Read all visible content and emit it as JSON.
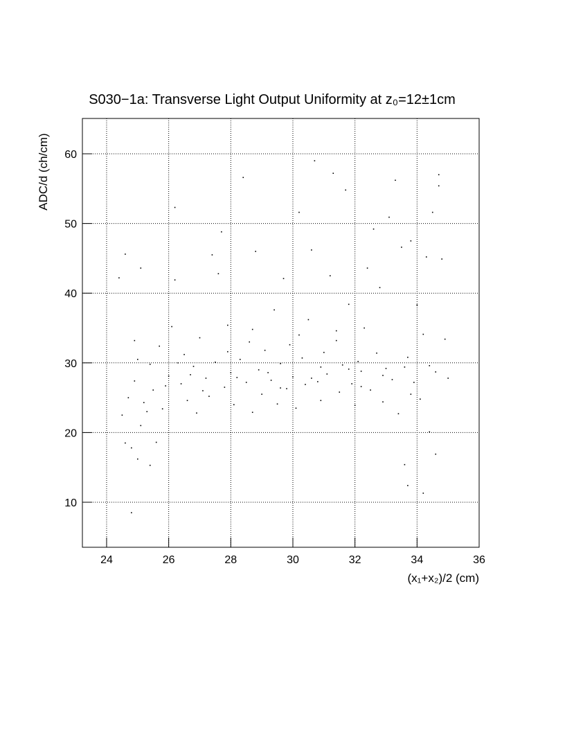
{
  "chart_data": {
    "type": "scatter",
    "title": "S030−1a: Transverse Light Output Uniformity at z₀=12±1cm",
    "x_label": "(x₁+x₂)/2 (cm)",
    "y_label": "ADC/d (ch/cm)",
    "x": [
      24.4,
      24.6,
      25.1,
      24.8,
      24.6,
      24.8,
      25.0,
      25.4,
      25.6,
      24.5,
      24.7,
      24.9,
      25.1,
      25.2,
      25.4,
      25.5,
      25.7,
      25.8,
      26.0,
      26.1,
      26.2,
      26.4,
      26.5,
      26.6,
      26.8,
      26.9,
      27.0,
      27.2,
      27.3,
      27.5,
      27.6,
      27.7,
      27.8,
      27.9,
      28.0,
      28.1,
      28.3,
      28.4,
      28.5,
      28.6,
      28.7,
      28.8,
      28.9,
      29.0,
      29.1,
      29.3,
      29.4,
      29.5,
      29.6,
      29.7,
      29.8,
      29.9,
      30.0,
      30.1,
      30.2,
      30.3,
      30.4,
      30.5,
      30.6,
      30.7,
      30.8,
      30.9,
      31.0,
      31.1,
      31.2,
      31.3,
      31.4,
      31.5,
      31.6,
      31.7,
      31.8,
      31.9,
      32.0,
      32.1,
      32.2,
      32.3,
      32.4,
      32.5,
      32.6,
      32.7,
      32.8,
      32.9,
      33.0,
      33.1,
      33.2,
      33.3,
      33.4,
      33.5,
      33.6,
      33.7,
      33.8,
      33.9,
      34.0,
      34.1,
      34.2,
      34.3,
      34.4,
      34.5,
      34.6,
      34.7,
      34.8,
      34.9,
      35.0,
      34.7,
      34.4,
      33.7,
      26.2,
      27.4,
      25.0,
      25.9,
      26.7,
      27.1,
      28.2,
      29.2,
      30.6,
      31.8,
      32.9,
      33.6,
      34.6,
      26.3,
      27.9,
      29.6,
      30.9,
      32.2,
      33.8,
      24.9,
      25.3,
      28.7,
      30.2,
      31.4,
      34.2
    ],
    "values": [
      42.2,
      45.6,
      43.6,
      8.5,
      18.5,
      17.8,
      16.2,
      15.3,
      18.6,
      22.5,
      25.0,
      27.4,
      21.0,
      24.3,
      29.8,
      26.1,
      32.4,
      23.4,
      28.1,
      35.2,
      41.9,
      27.0,
      31.2,
      24.6,
      29.5,
      22.8,
      33.6,
      27.8,
      25.2,
      30.1,
      42.8,
      48.8,
      26.5,
      35.4,
      28.6,
      24.0,
      30.5,
      56.6,
      27.2,
      33.0,
      22.9,
      46.0,
      29.0,
      25.5,
      31.8,
      27.5,
      37.6,
      24.1,
      29.9,
      42.1,
      26.3,
      32.6,
      28.0,
      23.5,
      51.6,
      30.7,
      26.9,
      36.2,
      46.2,
      59.0,
      27.3,
      24.6,
      31.5,
      28.4,
      42.5,
      57.2,
      33.2,
      25.8,
      29.7,
      54.8,
      38.4,
      27.0,
      23.9,
      30.2,
      28.8,
      35.0,
      43.6,
      26.1,
      49.2,
      31.4,
      40.8,
      24.4,
      29.2,
      50.9,
      27.6,
      56.2,
      22.7,
      46.6,
      15.4,
      30.8,
      47.5,
      27.2,
      38.3,
      24.8,
      11.3,
      45.2,
      29.6,
      51.6,
      16.9,
      57.0,
      44.9,
      33.4,
      27.8,
      55.4,
      20.1,
      12.4,
      52.3,
      45.5,
      30.5,
      26.7,
      28.3,
      26.0,
      27.9,
      28.6,
      27.8,
      29.1,
      28.2,
      29.4,
      28.7,
      30.0,
      31.6,
      26.4,
      29.4,
      26.6,
      25.5,
      33.2,
      23.0,
      34.8,
      34.0,
      34.6,
      34.1
    ],
    "color": "#000000",
    "xlim": [
      23.22,
      36
    ],
    "xticks": [
      24,
      26,
      28,
      30,
      32,
      34,
      36
    ],
    "ylim": [
      3.54,
      65.07
    ],
    "yticks": [
      10,
      20,
      30,
      40,
      50,
      60
    ],
    "grid": true
  }
}
